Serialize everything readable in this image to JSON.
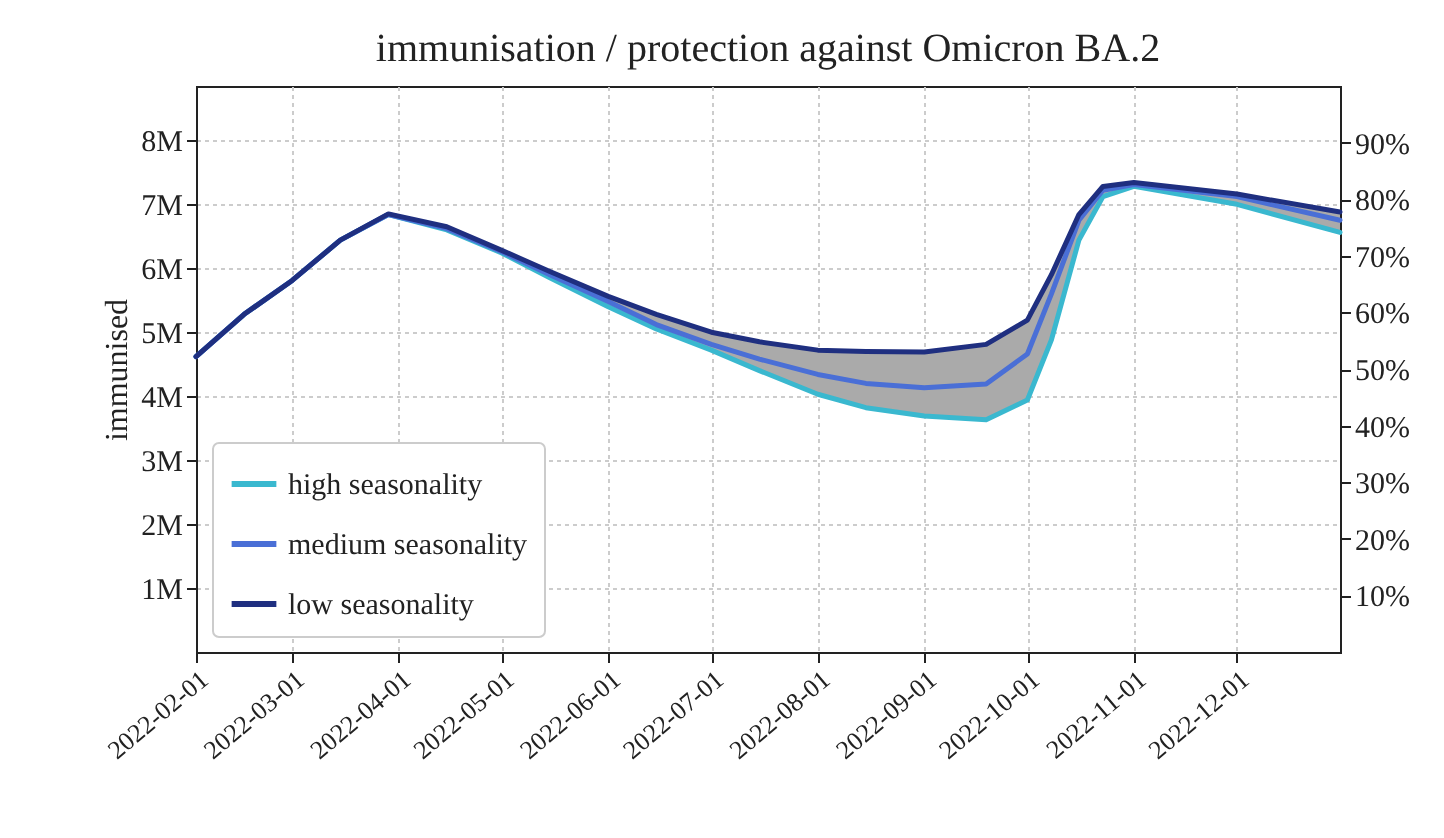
{
  "chart_data": {
    "type": "line",
    "title": "immunisation / protection against Omicron BA.2",
    "ylabel": "immunised",
    "x": [
      "2022-02-01",
      "2022-02-15",
      "2022-03-01",
      "2022-03-15",
      "2022-03-29",
      "2022-04-15",
      "2022-05-01",
      "2022-05-15",
      "2022-06-01",
      "2022-06-15",
      "2022-07-01",
      "2022-07-15",
      "2022-08-01",
      "2022-08-15",
      "2022-09-01",
      "2022-09-19",
      "2022-10-01",
      "2022-10-08",
      "2022-10-16",
      "2022-10-23",
      "2022-11-01",
      "2022-12-01",
      "2022-12-31"
    ],
    "series": [
      {
        "name": "high seasonality",
        "color": "#3ab8cf",
        "values": [
          4.62,
          5.28,
          5.81,
          6.44,
          6.84,
          6.6,
          6.24,
          5.85,
          5.4,
          5.05,
          4.72,
          4.4,
          4.03,
          3.82,
          3.69,
          3.63,
          3.94,
          4.88,
          6.44,
          7.12,
          7.28,
          7.0,
          6.56
        ]
      },
      {
        "name": "medium seasonality",
        "color": "#4a6fd6",
        "values": [
          4.62,
          5.28,
          5.81,
          6.44,
          6.84,
          6.62,
          6.26,
          5.9,
          5.48,
          5.12,
          4.81,
          4.58,
          4.34,
          4.2,
          4.13,
          4.19,
          4.66,
          5.6,
          6.75,
          7.22,
          7.31,
          7.12,
          6.75
        ],
        "lower": [
          4.62,
          5.28,
          5.81,
          6.44,
          6.84,
          6.6,
          6.24,
          5.85,
          5.4,
          5.05,
          4.72,
          4.4,
          4.03,
          3.82,
          3.69,
          3.63,
          3.94,
          4.88,
          6.44,
          7.12,
          7.28,
          7.0,
          6.56
        ],
        "upper": [
          4.62,
          5.28,
          5.81,
          6.44,
          6.85,
          6.65,
          6.28,
          5.95,
          5.56,
          5.28,
          5.0,
          4.85,
          4.72,
          4.7,
          4.69,
          4.81,
          5.19,
          5.9,
          6.84,
          7.28,
          7.34,
          7.16,
          6.88
        ]
      },
      {
        "name": "low seasonality",
        "color": "#1f2f80",
        "values": [
          4.62,
          5.28,
          5.81,
          6.44,
          6.85,
          6.65,
          6.28,
          5.95,
          5.56,
          5.28,
          5.0,
          4.85,
          4.72,
          4.7,
          4.69,
          4.81,
          5.19,
          5.9,
          6.84,
          7.28,
          7.34,
          7.16,
          6.88
        ]
      }
    ],
    "xlim": [
      "2022-02-01",
      "2022-12-31"
    ],
    "xticks": [
      "2022-02-01",
      "2022-03-01",
      "2022-04-01",
      "2022-05-01",
      "2022-06-01",
      "2022-07-01",
      "2022-08-01",
      "2022-09-01",
      "2022-10-01",
      "2022-11-01",
      "2022-12-01"
    ],
    "ylim": [
      0,
      8.85
    ],
    "yticks": [
      {
        "value": 1,
        "label": "1M"
      },
      {
        "value": 2,
        "label": "2M"
      },
      {
        "value": 3,
        "label": "3M"
      },
      {
        "value": 4,
        "label": "4M"
      },
      {
        "value": 5,
        "label": "5M"
      },
      {
        "value": 6,
        "label": "6M"
      },
      {
        "value": 7,
        "label": "7M"
      },
      {
        "value": 8,
        "label": "8M"
      }
    ],
    "y2lim": [
      0,
      100
    ],
    "y2ticks": [
      {
        "value": 10,
        "label": "10%"
      },
      {
        "value": 20,
        "label": "20%"
      },
      {
        "value": 30,
        "label": "30%"
      },
      {
        "value": 40,
        "label": "40%"
      },
      {
        "value": 50,
        "label": "50%"
      },
      {
        "value": 60,
        "label": "60%"
      },
      {
        "value": 70,
        "label": "70%"
      },
      {
        "value": 80,
        "label": "80%"
      },
      {
        "value": 90,
        "label": "90%"
      }
    ],
    "grid": true,
    "legend": "bottom left",
    "marker": "none",
    "line_style": "solid"
  }
}
